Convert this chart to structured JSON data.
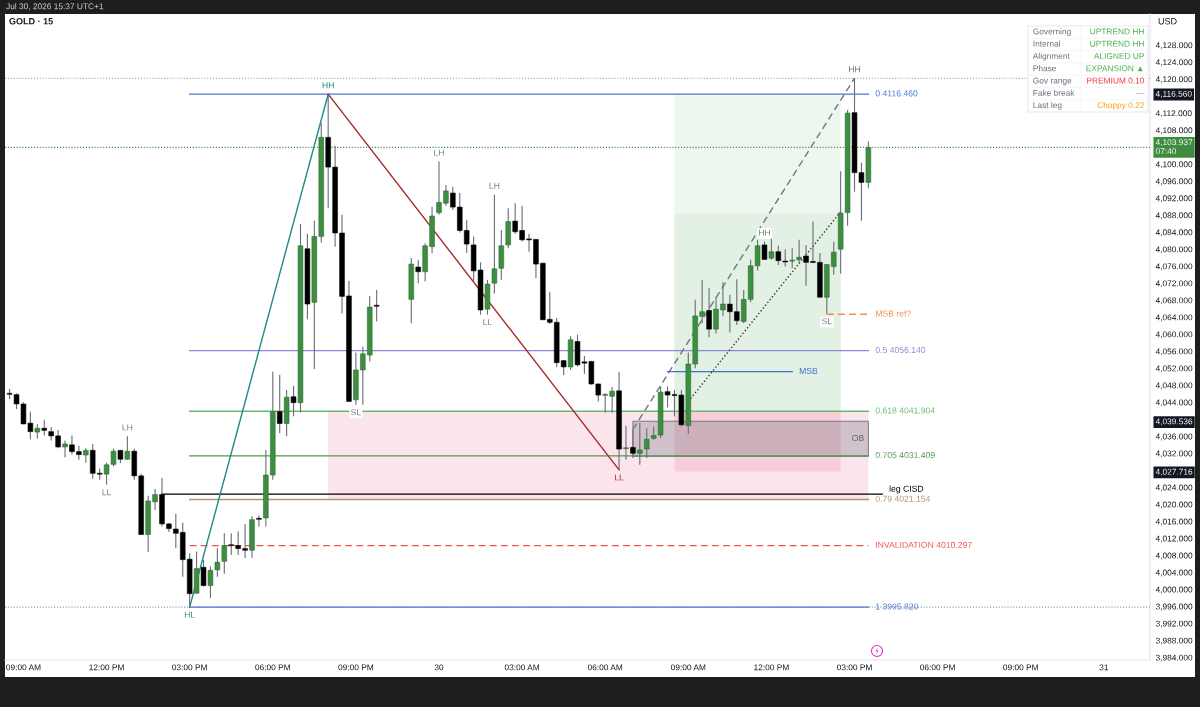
{
  "chart_data": [
    {
      "type": "candlestick",
      "title": "GOLD · 15",
      "ylabel": "USD",
      "x": [
        "2026-07-29T08:30",
        "2026-07-29T08:45",
        "2026-07-29T09:00",
        "2026-07-29T09:15",
        "2026-07-29T09:30",
        "2026-07-29T09:45",
        "2026-07-29T10:00",
        "2026-07-29T10:15",
        "2026-07-29T10:30",
        "2026-07-29T10:45",
        "2026-07-29T11:00",
        "2026-07-29T11:15",
        "2026-07-29T11:30",
        "2026-07-29T11:45",
        "2026-07-29T12:00",
        "2026-07-29T12:15",
        "2026-07-29T12:30",
        "2026-07-29T12:45",
        "2026-07-29T13:00",
        "2026-07-29T13:15",
        "2026-07-29T13:30",
        "2026-07-29T13:45",
        "2026-07-29T14:00",
        "2026-07-29T14:15",
        "2026-07-29T14:30",
        "2026-07-29T14:45",
        "2026-07-29T15:00",
        "2026-07-29T15:15",
        "2026-07-29T15:30",
        "2026-07-29T15:45",
        "2026-07-29T16:00",
        "2026-07-29T16:15",
        "2026-07-29T16:30",
        "2026-07-29T16:45",
        "2026-07-29T17:00",
        "2026-07-29T17:15",
        "2026-07-29T17:30",
        "2026-07-29T17:45",
        "2026-07-29T18:00",
        "2026-07-29T18:15",
        "2026-07-29T18:30",
        "2026-07-29T18:45",
        "2026-07-29T19:00",
        "2026-07-29T19:15",
        "2026-07-29T19:30",
        "2026-07-29T19:45",
        "2026-07-29T20:00",
        "2026-07-29T20:15",
        "2026-07-29T20:30",
        "2026-07-29T20:45",
        "2026-07-29T21:00",
        "2026-07-29T21:15",
        "2026-07-29T21:30",
        "2026-07-29T21:45",
        "2026-07-29T23:00",
        "2026-07-29T23:15",
        "2026-07-29T23:30",
        "2026-07-29T23:45",
        "2026-07-30T00:00",
        "2026-07-30T00:15",
        "2026-07-30T00:30",
        "2026-07-30T00:45",
        "2026-07-30T01:00",
        "2026-07-30T01:15",
        "2026-07-30T01:30",
        "2026-07-30T01:45",
        "2026-07-30T02:00",
        "2026-07-30T02:15",
        "2026-07-30T02:30",
        "2026-07-30T02:45",
        "2026-07-30T03:00",
        "2026-07-30T03:15",
        "2026-07-30T03:30",
        "2026-07-30T03:45",
        "2026-07-30T04:00",
        "2026-07-30T04:15",
        "2026-07-30T04:30",
        "2026-07-30T04:45",
        "2026-07-30T05:00",
        "2026-07-30T05:15",
        "2026-07-30T05:30",
        "2026-07-30T05:45",
        "2026-07-30T06:00",
        "2026-07-30T06:15",
        "2026-07-30T06:30",
        "2026-07-30T06:45",
        "2026-07-30T07:00",
        "2026-07-30T07:15",
        "2026-07-30T07:30",
        "2026-07-30T07:45",
        "2026-07-30T08:00",
        "2026-07-30T08:15",
        "2026-07-30T08:30",
        "2026-07-30T08:45",
        "2026-07-30T09:00",
        "2026-07-30T09:15",
        "2026-07-30T09:30",
        "2026-07-30T09:45",
        "2026-07-30T10:00",
        "2026-07-30T10:15",
        "2026-07-30T10:30",
        "2026-07-30T10:45",
        "2026-07-30T11:00",
        "2026-07-30T11:15",
        "2026-07-30T11:30",
        "2026-07-30T11:45",
        "2026-07-30T12:00",
        "2026-07-30T12:15",
        "2026-07-30T12:30",
        "2026-07-30T12:45",
        "2026-07-30T13:00",
        "2026-07-30T13:15",
        "2026-07-30T13:30",
        "2026-07-30T13:45",
        "2026-07-30T14:00",
        "2026-07-30T14:15",
        "2026-07-30T14:30",
        "2026-07-30T14:45",
        "2026-07-30T15:00",
        "2026-07-30T15:15",
        "2026-07-30T15:30"
      ],
      "ohlc": [
        [
          4046.0,
          4047.1,
          4044.7,
          4046.0
        ],
        [
          4045.8,
          4046.1,
          4042.4,
          4043.6
        ],
        [
          4043.6,
          4044.0,
          4038.9,
          4038.9
        ],
        [
          4039.1,
          4041.8,
          4035.3,
          4037.1
        ],
        [
          4037.0,
          4038.9,
          4035.5,
          4037.9
        ],
        [
          4037.9,
          4039.9,
          4036.2,
          4037.4
        ],
        [
          4037.1,
          4038.2,
          4035.0,
          4036.1
        ],
        [
          4036.1,
          4037.5,
          4033.2,
          4033.5
        ],
        [
          4033.5,
          4035.0,
          4031.1,
          4034.2
        ],
        [
          4034.0,
          4036.2,
          4031.7,
          4032.4
        ],
        [
          4032.4,
          4033.8,
          4030.5,
          4031.7
        ],
        [
          4031.6,
          4033.2,
          4029.8,
          4032.7
        ],
        [
          4032.7,
          4034.2,
          4026.0,
          4027.3
        ],
        [
          4027.2,
          4028.4,
          4025.8,
          4027.2
        ],
        [
          4027.1,
          4029.8,
          4024.6,
          4029.3
        ],
        [
          4029.4,
          4033.1,
          4028.9,
          4032.5
        ],
        [
          4032.7,
          4032.8,
          4029.7,
          4030.6
        ],
        [
          4030.6,
          4036.0,
          4030.5,
          4032.5
        ],
        [
          4032.5,
          4033.1,
          4025.8,
          4026.7
        ],
        [
          4026.7,
          4027.2,
          4012.8,
          4012.9
        ],
        [
          4012.9,
          4022.0,
          4008.8,
          4020.8
        ],
        [
          4020.6,
          4023.6,
          4018.7,
          4022.3
        ],
        [
          4022.3,
          4026.2,
          4014.8,
          4015.4
        ],
        [
          4015.4,
          4015.6,
          4013.5,
          4014.3
        ],
        [
          4014.2,
          4017.8,
          4009.7,
          4013.2
        ],
        [
          4013.4,
          4015.7,
          4003.0,
          4007.0
        ],
        [
          4007.1,
          4008.5,
          3995.8,
          3999.0
        ],
        [
          3999.1,
          4008.9,
          3999.0,
          4004.9
        ],
        [
          4005.2,
          4007.0,
          4000.7,
          4000.9
        ],
        [
          4000.9,
          4005.4,
          3998.0,
          4004.5
        ],
        [
          4004.6,
          4009.7,
          4003.0,
          4006.4
        ],
        [
          4006.6,
          4013.2,
          4003.7,
          4010.3
        ],
        [
          4010.5,
          4013.2,
          4008.1,
          4010.3
        ],
        [
          4010.3,
          4013.6,
          4008.1,
          4009.6
        ],
        [
          4009.6,
          4015.4,
          4007.4,
          4009.2
        ],
        [
          4009.2,
          4017.2,
          4007.4,
          4016.4
        ],
        [
          4016.7,
          4017.4,
          4014.8,
          4016.5
        ],
        [
          4016.8,
          4032.8,
          4014.8,
          4026.9
        ],
        [
          4026.9,
          4051.2,
          4025.8,
          4041.8
        ],
        [
          4041.8,
          4050.5,
          4036.7,
          4039.0
        ],
        [
          4039.0,
          4046.9,
          4036.0,
          4045.2
        ],
        [
          4045.3,
          4047.9,
          4040.7,
          4043.9
        ],
        [
          4043.9,
          4085.9,
          4041.6,
          4080.8
        ],
        [
          4080.1,
          4083.6,
          4063.5,
          4067.1
        ],
        [
          4067.5,
          4086.7,
          4051.8,
          4083.0
        ],
        [
          4083.0,
          4109.6,
          4081.6,
          4106.3
        ],
        [
          4106.3,
          4116.5,
          4089.6,
          4099.3
        ],
        [
          4099.3,
          4104.3,
          4080.6,
          4083.8
        ],
        [
          4083.8,
          4088.1,
          4064.9,
          4068.9
        ],
        [
          4069.0,
          4072.5,
          4044.2,
          4044.2
        ],
        [
          4044.6,
          4055.7,
          4043.4,
          4051.6
        ],
        [
          4051.6,
          4057.1,
          4043.4,
          4055.4
        ],
        [
          4055.1,
          4069.0,
          4053.6,
          4066.4
        ],
        [
          4066.7,
          4070.4,
          4063.0,
          4066.7
        ],
        [
          4068.2,
          4077.9,
          4062.6,
          4076.5
        ],
        [
          4075.8,
          4077.5,
          4072.0,
          4074.7
        ],
        [
          4074.7,
          4081.4,
          4072.4,
          4080.8
        ],
        [
          4080.6,
          4090.0,
          4079.1,
          4087.8
        ],
        [
          4088.6,
          4100.6,
          4088.1,
          4091.0
        ],
        [
          4090.8,
          4095.1,
          4090.2,
          4093.7
        ],
        [
          4093.2,
          4094.7,
          4089.2,
          4089.9
        ],
        [
          4089.9,
          4093.2,
          4083.9,
          4084.4
        ],
        [
          4084.4,
          4086.9,
          4079.1,
          4081.2
        ],
        [
          4081.0,
          4083.0,
          4072.4,
          4074.9
        ],
        [
          4075.1,
          4076.9,
          4064.6,
          4065.7
        ],
        [
          4065.9,
          4072.8,
          4064.6,
          4071.8
        ],
        [
          4072.0,
          4092.8,
          4069.6,
          4075.4
        ],
        [
          4075.5,
          4084.5,
          4072.8,
          4080.8
        ],
        [
          4081.0,
          4089.6,
          4080.2,
          4086.5
        ],
        [
          4086.6,
          4090.8,
          4083.6,
          4084.1
        ],
        [
          4084.4,
          4090.2,
          4081.8,
          4082.2
        ],
        [
          4082.3,
          4083.6,
          4079.4,
          4082.3
        ],
        [
          4082.3,
          4082.4,
          4073.2,
          4076.5
        ],
        [
          4076.7,
          4076.8,
          4063.4,
          4063.4
        ],
        [
          4063.5,
          4070.0,
          4062.4,
          4062.8
        ],
        [
          4062.8,
          4063.8,
          4052.3,
          4053.3
        ],
        [
          4053.8,
          4053.9,
          4050.4,
          4052.3
        ],
        [
          4052.3,
          4059.5,
          4051.6,
          4058.7
        ],
        [
          4058.3,
          4059.9,
          4052.4,
          4052.8
        ],
        [
          4053.5,
          4054.9,
          4050.7,
          4053.2
        ],
        [
          4053.6,
          4053.7,
          4048.1,
          4048.3
        ],
        [
          4048.3,
          4048.5,
          4044.2,
          4045.7
        ],
        [
          4045.7,
          4046.1,
          4041.6,
          4045.8
        ],
        [
          4045.4,
          4047.6,
          4041.5,
          4046.6
        ],
        [
          4046.7,
          4051.2,
          4028.1,
          4033.0
        ],
        [
          4033.1,
          4038.5,
          4030.5,
          4033.3
        ],
        [
          4033.4,
          4037.5,
          4030.9,
          4032.0
        ],
        [
          4032.0,
          4039.1,
          4029.3,
          4032.8
        ],
        [
          4033.0,
          4037.9,
          4030.9,
          4035.3
        ],
        [
          4035.5,
          4038.3,
          4035.2,
          4036.2
        ],
        [
          4036.3,
          4047.7,
          4035.6,
          4046.4
        ],
        [
          4046.5,
          4047.7,
          4042.8,
          4045.7
        ],
        [
          4045.7,
          4046.9,
          4040.7,
          4045.7
        ],
        [
          4045.7,
          4046.9,
          4038.3,
          4038.7
        ],
        [
          4038.5,
          4055.7,
          4036.6,
          4053.0
        ],
        [
          4053.0,
          4068.1,
          4052.0,
          4064.3
        ],
        [
          4064.2,
          4072.8,
          4062.6,
          4065.3
        ],
        [
          4065.6,
          4070.8,
          4059.3,
          4061.2
        ],
        [
          4061.2,
          4068.7,
          4060.2,
          4065.9
        ],
        [
          4065.7,
          4072.2,
          4064.2,
          4067.1
        ],
        [
          4067.1,
          4069.3,
          4060.4,
          4065.3
        ],
        [
          4065.3,
          4072.9,
          4062.2,
          4063.2
        ],
        [
          4063.0,
          4070.4,
          4062.6,
          4068.2
        ],
        [
          4068.2,
          4077.5,
          4067.5,
          4076.1
        ],
        [
          4076.1,
          4082.2,
          4075.0,
          4080.8
        ],
        [
          4081.0,
          4081.8,
          4077.5,
          4077.6
        ],
        [
          4077.9,
          4082.6,
          4077.5,
          4079.4
        ],
        [
          4079.4,
          4080.8,
          4076.3,
          4077.3
        ],
        [
          4077.2,
          4080.0,
          4075.9,
          4077.0
        ],
        [
          4077.2,
          4080.2,
          4075.5,
          4077.4
        ],
        [
          4077.5,
          4082.2,
          4076.7,
          4078.1
        ],
        [
          4078.4,
          4081.0,
          4071.4,
          4076.9
        ],
        [
          4077.0,
          4086.5,
          4076.7,
          4077.0
        ],
        [
          4076.9,
          4079.1,
          4068.7,
          4068.7
        ],
        [
          4068.7,
          4076.4,
          4064.8,
          4076.4
        ],
        [
          4075.9,
          4081.8,
          4074.0,
          4079.3
        ],
        [
          4080.0,
          4098.3,
          4074.3,
          4088.5
        ],
        [
          4088.6,
          4112.7,
          4085.5,
          4112.0
        ],
        [
          4112.1,
          4120.2,
          4093.5,
          4098.0
        ],
        [
          4098.0,
          4100.3,
          4086.7,
          4095.7
        ],
        [
          4095.7,
          4105.3,
          4094.3,
          4103.9
        ]
      ],
      "colors": [
        "#000000",
        "#000000",
        "#000000",
        "#000000",
        "#3e8e41",
        "#000000",
        "#000000",
        "#000000",
        "#3e8e41",
        "#000000",
        "#000000",
        "#3e8e41",
        "#000000",
        "#000000",
        "#3e8e41",
        "#3e8e41",
        "#000000",
        "#3e8e41",
        "#000000",
        "#000000",
        "#3e8e41",
        "#3e8e41",
        "#000000",
        "#000000",
        "#000000",
        "#000000",
        "#000000",
        "#3e8e41",
        "#000000",
        "#3e8e41",
        "#3e8e41",
        "#3e8e41",
        "#000000",
        "#000000",
        "#000000",
        "#3e8e41",
        "#000000",
        "#3e8e41",
        "#3e8e41",
        "#000000",
        "#3e8e41",
        "#000000",
        "#3e8e41",
        "#000000",
        "#3e8e41",
        "#3e8e41",
        "#000000",
        "#000000",
        "#000000",
        "#000000",
        "#3e8e41",
        "#3e8e41",
        "#3e8e41",
        "#000000",
        "#3e8e41",
        "#000000",
        "#3e8e41",
        "#3e8e41",
        "#3e8e41",
        "#3e8e41",
        "#000000",
        "#000000",
        "#000000",
        "#000000",
        "#000000",
        "#3e8e41",
        "#3e8e41",
        "#3e8e41",
        "#3e8e41",
        "#000000",
        "#000000",
        "#000000",
        "#000000",
        "#000000",
        "#000000",
        "#000000",
        "#000000",
        "#3e8e41",
        "#000000",
        "#000000",
        "#000000",
        "#000000",
        "#3e8e41",
        "#3e8e41",
        "#000000",
        "#3e8e41",
        "#000000",
        "#3e8e41",
        "#3e8e41",
        "#3e8e41",
        "#3e8e41",
        "#000000",
        "#000000",
        "#000000",
        "#3e8e41",
        "#3e8e41",
        "#3e8e41",
        "#000000",
        "#3e8e41",
        "#3e8e41",
        "#000000",
        "#000000",
        "#3e8e41",
        "#3e8e41",
        "#3e8e41",
        "#000000",
        "#3e8e41",
        "#000000",
        "#000000",
        "#3e8e41",
        "#3e8e41",
        "#000000",
        "#000000",
        "#000000",
        "#3e8e41",
        "#3e8e41",
        "#3e8e41",
        "#3e8e41",
        "#000000",
        "#000000",
        "#3e8e41"
      ],
      "series": [
        {
          "type": "area",
          "x": [
            "2026-07-29T20:00",
            "2026-07-30T15:30"
          ],
          "values": [
            null,
            null
          ],
          "upper": [
            4041.904,
            4041.904
          ],
          "lower": [
            4021.154,
            4021.154
          ],
          "color": "#fce4ec"
        },
        {
          "type": "area",
          "x": [
            "2026-07-30T08:30",
            "2026-07-30T14:30"
          ],
          "values": [
            null,
            null
          ],
          "upper": [
            4116.56,
            4116.56
          ],
          "lower": [
            4041.904,
            4041.904
          ],
          "color": "#eef7ef"
        },
        {
          "type": "area",
          "x": [
            "2026-07-30T08:30",
            "2026-07-30T14:30"
          ],
          "values": [
            null,
            null
          ],
          "upper": [
            4088.4,
            4088.4
          ],
          "lower": [
            4041.904,
            4041.904
          ],
          "color": "#e3f1e4"
        },
        {
          "type": "area",
          "x": [
            "2026-07-30T08:30",
            "2026-07-30T14:30"
          ],
          "values": [
            null,
            null
          ],
          "upper": [
            4041.904,
            4041.904
          ],
          "lower": [
            4027.716,
            4027.716
          ],
          "color": "#f7cdd8"
        },
        {
          "type": "area",
          "name": "OB",
          "x": [
            "2026-07-30T07:00",
            "2026-07-30T15:30"
          ],
          "values": [
            null,
            null
          ],
          "upper": [
            4039.536,
            4039.536
          ],
          "lower": [
            4031.3,
            4031.3
          ],
          "color": "#5f6878"
        },
        {
          "type": "line",
          "name": "0 4116.460",
          "x": [
            "2026-07-29T15:00",
            "2026-07-30T15:30"
          ],
          "values": [
            4116.46,
            4116.46
          ],
          "color": "#4a76d8"
        },
        {
          "type": "line",
          "name": "0.5 4056.140",
          "x": [
            "2026-07-29T15:00",
            "2026-07-30T15:30"
          ],
          "values": [
            4056.14,
            4056.14
          ],
          "color": "#8f86d9"
        },
        {
          "type": "line",
          "name": "0.618 4041.904",
          "x": [
            "2026-07-29T15:00",
            "2026-07-30T15:30"
          ],
          "values": [
            4041.904,
            4041.904
          ],
          "color": "#6cb86f"
        },
        {
          "type": "line",
          "name": "0.705 4031.409",
          "x": [
            "2026-07-29T15:00",
            "2026-07-30T15:30"
          ],
          "values": [
            4031.409,
            4031.409
          ],
          "color": "#4e9a52"
        },
        {
          "type": "line",
          "name": "0.79 4021.154",
          "x": [
            "2026-07-29T15:00",
            "2026-07-30T15:30"
          ],
          "values": [
            4021.154,
            4021.154
          ],
          "color": "#ad9670"
        },
        {
          "type": "line",
          "name": "1 3995.820",
          "x": [
            "2026-07-29T15:00",
            "2026-07-30T15:30"
          ],
          "values": [
            3995.82,
            3995.82
          ],
          "color": "#4a76d8"
        },
        {
          "type": "line",
          "name": "INVALIDATION 4010.297",
          "x": [
            "2026-07-29T15:00",
            "2026-07-30T15:30"
          ],
          "values": [
            4010.297,
            4010.297
          ],
          "color": "#ef5350",
          "line_style": "dashed"
        },
        {
          "type": "line",
          "name": "leg CISD",
          "x": [
            "2026-07-29T14:00",
            "2026-07-30T16:00"
          ],
          "values": [
            4022.4,
            4022.4
          ],
          "color": "#000000"
        },
        {
          "type": "line",
          "name": "MSB",
          "x": [
            "2026-07-30T08:15",
            "2026-07-30T12:45"
          ],
          "values": [
            4051.2,
            4051.2
          ],
          "color": "#3d6fd6"
        },
        {
          "type": "line",
          "name": "MSB ref?",
          "x": [
            "2026-07-30T14:00",
            "2026-07-30T15:30"
          ],
          "values": [
            4064.7,
            4064.7
          ],
          "color": "#f0914a",
          "line_style": "dashed"
        },
        {
          "type": "line",
          "x": [
            "2026-07-29T15:00",
            "2026-07-29T20:00"
          ],
          "values": [
            3995.82,
            4116.46
          ],
          "color": "#1f8a84",
          "value_labels": [
            "HL",
            "HH"
          ]
        },
        {
          "type": "line",
          "x": [
            "2026-07-29T20:00",
            "2026-07-30T06:30"
          ],
          "values": [
            4116.46,
            4028.1
          ],
          "color": "#a52a2a",
          "value_labels": [
            null,
            "LL"
          ]
        },
        {
          "type": "line",
          "x": [
            "2026-07-30T07:00",
            "2026-07-30T15:00"
          ],
          "values": [
            4037.6,
            4120.2
          ],
          "color": "#6b7878",
          "line_style": "dashed",
          "value_labels": [
            null,
            "HH"
          ]
        },
        {
          "type": "line",
          "x": [
            "2026-07-30T09:00",
            "2026-07-30T14:30"
          ],
          "values": [
            4044.2,
            4088.8
          ],
          "color": "#333333",
          "line_style": "dotted"
        }
      ],
      "ref_lines": [
        {
          "axis": "y",
          "value": 4120.2,
          "color": "#9598a1",
          "line_style": "dotted"
        },
        {
          "axis": "y",
          "value": 4103.937,
          "label": "4,103.937\n07:40",
          "color": "#3d8c40",
          "line_style": "dotted"
        },
        {
          "axis": "y",
          "value": 3995.82,
          "color": "#9598a1",
          "line_style": "dotted"
        }
      ],
      "annotations": [
        "Jul 30, 2026 15:37 UTC+1",
        {
          "text": "LH",
          "x": "2026-07-29T12:45",
          "y": 4036.0
        },
        {
          "text": "LL",
          "x": "2026-07-29T12:00",
          "y": 4024.6
        },
        {
          "text": "SL",
          "x": "2026-07-29T21:00",
          "y": 4043.4
        },
        {
          "text": "LH",
          "x": "2026-07-30T00:00",
          "y": 4100.6
        },
        {
          "text": "LL",
          "x": "2026-07-30T01:45",
          "y": 4064.6
        },
        {
          "text": "LH",
          "x": "2026-07-30T02:00",
          "y": 4092.8
        },
        {
          "text": "HH",
          "x": "2026-07-30T11:45",
          "y": 4081.8
        },
        {
          "text": "SL",
          "x": "2026-07-30T14:00",
          "y": 4064.8
        }
      ],
      "xlim": [
        "2026-07-29T08:20",
        "2026-07-31T01:40"
      ],
      "ylim": [
        3983.4,
        4135.3
      ],
      "xticks": [
        {
          "value": "2026-07-29T09:00",
          "label": "09:00 AM"
        },
        {
          "value": "2026-07-29T12:00",
          "label": "12:00 PM"
        },
        {
          "value": "2026-07-29T15:00",
          "label": "03:00 PM"
        },
        {
          "value": "2026-07-29T18:00",
          "label": "06:00 PM"
        },
        {
          "value": "2026-07-29T21:00",
          "label": "09:00 PM"
        },
        {
          "value": "2026-07-30T00:00",
          "label": "30"
        },
        {
          "value": "2026-07-30T03:00",
          "label": "03:00 AM"
        },
        {
          "value": "2026-07-30T06:00",
          "label": "06:00 AM"
        },
        {
          "value": "2026-07-30T09:00",
          "label": "09:00 AM"
        },
        {
          "value": "2026-07-30T12:00",
          "label": "12:00 PM"
        },
        {
          "value": "2026-07-30T15:00",
          "label": "03:00 PM"
        },
        {
          "value": "2026-07-30T18:00",
          "label": "06:00 PM"
        },
        {
          "value": "2026-07-30T21:00",
          "label": "09:00 PM"
        },
        {
          "value": "2026-07-31T00:00",
          "label": "31"
        }
      ],
      "yticks": [
        {
          "value": 4128,
          "label": "4,128.000"
        },
        {
          "value": 4124,
          "label": "4,124.000"
        },
        {
          "value": 4120,
          "label": "4,120.000"
        },
        {
          "value": 4116.56,
          "label": "4,116.560"
        },
        {
          "value": 4112,
          "label": "4,112.000"
        },
        {
          "value": 4108,
          "label": "4,108.000"
        },
        {
          "value": 4100,
          "label": "4,100.000"
        },
        {
          "value": 4096,
          "label": "4,096.000"
        },
        {
          "value": 4092,
          "label": "4,092.000"
        },
        {
          "value": 4088,
          "label": "4,088.000"
        },
        {
          "value": 4084,
          "label": "4,084.000"
        },
        {
          "value": 4080,
          "label": "4,080.000"
        },
        {
          "value": 4076,
          "label": "4,076.000"
        },
        {
          "value": 4072,
          "label": "4,072.000"
        },
        {
          "value": 4068,
          "label": "4,068.000"
        },
        {
          "value": 4064,
          "label": "4,064.000"
        },
        {
          "value": 4060,
          "label": "4,060.000"
        },
        {
          "value": 4056,
          "label": "4,056.000"
        },
        {
          "value": 4052,
          "label": "4,052.000"
        },
        {
          "value": 4048,
          "label": "4,048.000"
        },
        {
          "value": 4044,
          "label": "4,044.000"
        },
        {
          "value": 4039.536,
          "label": "4,039.536"
        },
        {
          "value": 4036,
          "label": "4,036.000"
        },
        {
          "value": 4032,
          "label": "4,032.000"
        },
        {
          "value": 4027.716,
          "label": "4,027.716"
        },
        {
          "value": 4024,
          "label": "4,024.000"
        },
        {
          "value": 4020,
          "label": "4,020.000"
        },
        {
          "value": 4016,
          "label": "4,016.000"
        },
        {
          "value": 4012,
          "label": "4,012.000"
        },
        {
          "value": 4008,
          "label": "4,008.000"
        },
        {
          "value": 4004,
          "label": "4,004.000"
        },
        {
          "value": 4000,
          "label": "4,000.000"
        },
        {
          "value": 3996,
          "label": "3,996.000"
        },
        {
          "value": 3992,
          "label": "3,992.000"
        },
        {
          "value": 3988,
          "label": "3,988.000"
        },
        {
          "value": 3984,
          "label": "3,984.000"
        }
      ]
    },
    {
      "type": "other",
      "annotations": [
        "Governing",
        "UPTREND HH",
        "Internal",
        "UPTREND HH",
        "Alignment",
        "ALIGNED UP",
        "Phase",
        "EXPANSION ▲",
        "Gov range",
        "PREMIUM 0.10",
        "Fake break",
        "—",
        "Last leg",
        "Choppy 0.22"
      ],
      "colors": [
        "#6a6d78",
        "#4caf50",
        "#6a6d78",
        "#4caf50",
        "#6a6d78",
        "#4caf50",
        "#6a6d78",
        "#4caf50",
        "#6a6d78",
        "#f23645",
        "#6a6d78",
        "#9598a1",
        "#6a6d78",
        "#ff9800"
      ]
    }
  ]
}
